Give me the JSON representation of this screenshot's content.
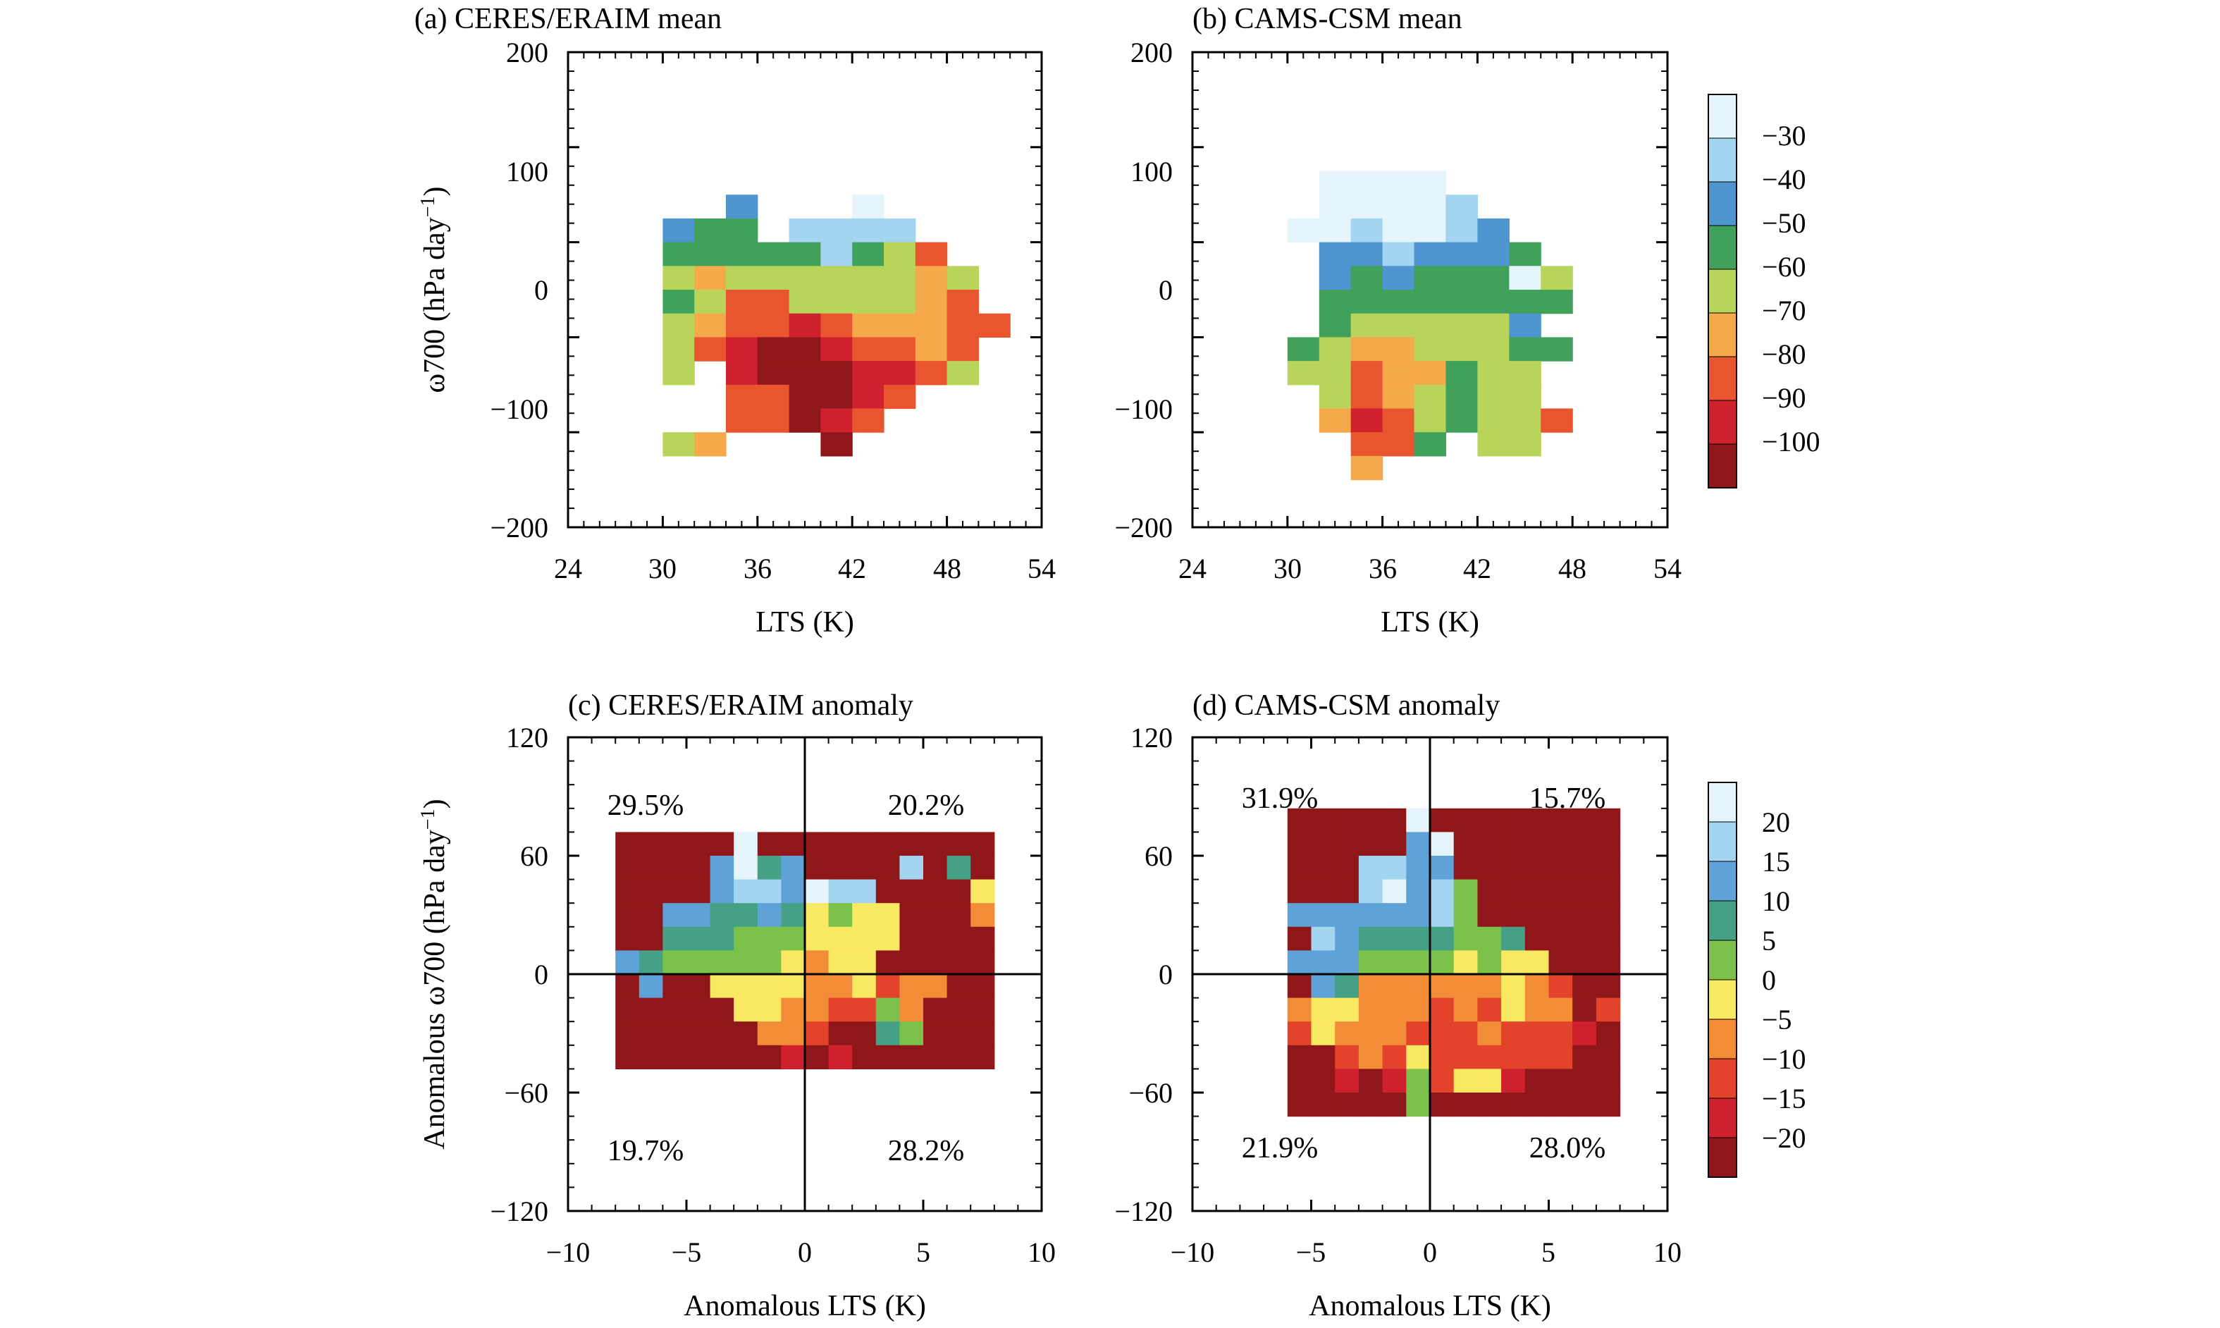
{
  "figure_type": "heatmap",
  "colorbars": {
    "mean": {
      "colors": [
        "#e6f4fb",
        "#a3d4f0",
        "#4f95d0",
        "#41a15a",
        "#b8d45a",
        "#f6a94a",
        "#e8552f",
        "#cf202d",
        "#901719"
      ],
      "labels": [
        "−30",
        "−40",
        "−50",
        "−60",
        "−70",
        "−80",
        "−90",
        "−100"
      ]
    },
    "anomaly": {
      "colors": [
        "#e6f4fb",
        "#a3d4f0",
        "#5fa2d8",
        "#45a086",
        "#7cc24a",
        "#f9e861",
        "#f38c37",
        "#e3432a",
        "#cf202d",
        "#901719"
      ],
      "labels": [
        "20",
        "15",
        "10",
        "5",
        "0",
        "−5",
        "−10",
        "−15",
        "−20"
      ]
    }
  },
  "chart_data": [
    {
      "type": "heatmap",
      "title": "(a) CERES/ERAIM mean",
      "xlabel": "LTS (K)",
      "ylabel": "ω700 (hPa day",
      "ylabel_sup": "−1",
      "ylabel_close": ")",
      "xlim": [
        24,
        54
      ],
      "ylim": [
        -200,
        200
      ],
      "xticks": [
        "24",
        "30",
        "36",
        "42",
        "48",
        "54"
      ],
      "yticks": [
        "200",
        "100",
        "0",
        "−100",
        "−200"
      ],
      "x_bin": 2,
      "y_bin": 20,
      "x_start": 30,
      "y_start": 80,
      "rows": [
        [
          9,
          9,
          2,
          9,
          9,
          9,
          0,
          9,
          9,
          9,
          9,
          9
        ],
        [
          2,
          3,
          3,
          9,
          1,
          1,
          1,
          1,
          9,
          9,
          9,
          9
        ],
        [
          3,
          3,
          3,
          3,
          3,
          1,
          3,
          4,
          6,
          9,
          9,
          9
        ],
        [
          4,
          5,
          4,
          4,
          4,
          4,
          4,
          4,
          5,
          4,
          9,
          9
        ],
        [
          3,
          4,
          6,
          6,
          4,
          4,
          4,
          4,
          5,
          6,
          9,
          9
        ],
        [
          4,
          5,
          6,
          6,
          7,
          6,
          5,
          5,
          5,
          6,
          6,
          9
        ],
        [
          4,
          6,
          7,
          8,
          8,
          7,
          6,
          6,
          5,
          6,
          9,
          9
        ],
        [
          4,
          9,
          7,
          8,
          8,
          8,
          7,
          7,
          6,
          4,
          9,
          9
        ],
        [
          9,
          9,
          6,
          6,
          8,
          8,
          7,
          6,
          9,
          9,
          9,
          9
        ],
        [
          9,
          9,
          6,
          6,
          8,
          7,
          6,
          9,
          9,
          9,
          9,
          9
        ],
        [
          4,
          5,
          9,
          9,
          9,
          8,
          9,
          9,
          9,
          9,
          9,
          9
        ]
      ]
    },
    {
      "type": "heatmap",
      "title": "(b) CAMS-CSM mean",
      "xlabel": "LTS (K)",
      "ylabel": "",
      "xlim": [
        24,
        54
      ],
      "ylim": [
        -200,
        200
      ],
      "xticks": [
        "24",
        "30",
        "36",
        "42",
        "48",
        "54"
      ],
      "yticks": [
        "200",
        "100",
        "0",
        "−100",
        "−200"
      ],
      "x_bin": 2,
      "y_bin": 20,
      "x_start": 30,
      "y_start": 100,
      "rows": [
        [
          9,
          0,
          0,
          0,
          0,
          9,
          9,
          9,
          9,
          9
        ],
        [
          9,
          0,
          0,
          0,
          0,
          1,
          9,
          9,
          9,
          9
        ],
        [
          0,
          0,
          1,
          0,
          0,
          1,
          2,
          9,
          9,
          9
        ],
        [
          9,
          2,
          2,
          1,
          2,
          2,
          2,
          3,
          9,
          9
        ],
        [
          9,
          2,
          3,
          2,
          3,
          3,
          3,
          0,
          4,
          9
        ],
        [
          9,
          3,
          3,
          3,
          3,
          3,
          3,
          3,
          3,
          9
        ],
        [
          9,
          3,
          4,
          4,
          4,
          4,
          4,
          2,
          9,
          9
        ],
        [
          3,
          4,
          5,
          5,
          4,
          4,
          4,
          3,
          3,
          9
        ],
        [
          4,
          4,
          6,
          5,
          5,
          3,
          4,
          4,
          9,
          9
        ],
        [
          9,
          4,
          6,
          5,
          4,
          3,
          4,
          4,
          9,
          9
        ],
        [
          9,
          5,
          7,
          6,
          4,
          3,
          4,
          4,
          6,
          9
        ],
        [
          9,
          9,
          6,
          6,
          3,
          9,
          4,
          4,
          9,
          9
        ],
        [
          9,
          9,
          5,
          9,
          9,
          9,
          9,
          9,
          9,
          9
        ]
      ]
    },
    {
      "type": "heatmap",
      "title": "(c) CERES/ERAIM anomaly",
      "xlabel": "Anomalous LTS (K)",
      "ylabel": "Anomalous ω700 (hPa day",
      "ylabel_sup": "−1",
      "ylabel_close": ")",
      "xlim": [
        -10,
        10
      ],
      "ylim": [
        -120,
        120
      ],
      "xticks": [
        "−10",
        "−5",
        "0",
        "5",
        "10"
      ],
      "yticks": [
        "120",
        "60",
        "0",
        "−60",
        "−120"
      ],
      "x_bin": 1,
      "y_bin": 12,
      "x_start": -8,
      "y_start": 72,
      "quadrant_percentages": {
        "top_left": "29.5%",
        "top_right": "20.2%",
        "bottom_left": "19.7%",
        "bottom_right": "28.2%"
      },
      "rows": [
        [
          9,
          9,
          9,
          9,
          9,
          0,
          9,
          9,
          9,
          9,
          9,
          9,
          9,
          9,
          9,
          9
        ],
        [
          9,
          9,
          9,
          9,
          2,
          0,
          3,
          2,
          9,
          9,
          9,
          9,
          1,
          9,
          3,
          9
        ],
        [
          9,
          9,
          9,
          9,
          2,
          1,
          1,
          2,
          0,
          1,
          1,
          9,
          9,
          9,
          9,
          5
        ],
        [
          9,
          9,
          2,
          2,
          3,
          3,
          2,
          3,
          5,
          4,
          5,
          5,
          9,
          9,
          9,
          6
        ],
        [
          9,
          9,
          3,
          3,
          3,
          4,
          4,
          4,
          5,
          5,
          5,
          5,
          9,
          9,
          9,
          9
        ],
        [
          2,
          3,
          4,
          4,
          4,
          4,
          4,
          5,
          6,
          5,
          5,
          9,
          9,
          9,
          9,
          9
        ],
        [
          9,
          2,
          9,
          9,
          5,
          5,
          5,
          5,
          6,
          6,
          5,
          7,
          6,
          6,
          9,
          9
        ],
        [
          9,
          9,
          9,
          9,
          9,
          5,
          5,
          6,
          6,
          7,
          7,
          4,
          6,
          9,
          9,
          9
        ],
        [
          9,
          9,
          9,
          9,
          9,
          9,
          6,
          6,
          7,
          9,
          9,
          3,
          4,
          9,
          9,
          9
        ],
        [
          9,
          9,
          9,
          9,
          9,
          9,
          9,
          8,
          9,
          8,
          9,
          9,
          9,
          9,
          9,
          9
        ]
      ]
    },
    {
      "type": "heatmap",
      "title": "(d) CAMS-CSM anomaly",
      "xlabel": "Anomalous LTS (K)",
      "ylabel": "",
      "xlim": [
        -10,
        10
      ],
      "ylim": [
        -120,
        120
      ],
      "xticks": [
        "−10",
        "−5",
        "0",
        "5",
        "10"
      ],
      "yticks": [
        "120",
        "60",
        "0",
        "−60",
        "−120"
      ],
      "x_bin": 1,
      "y_bin": 12,
      "x_start": -6,
      "y_start": 84,
      "quadrant_percentages": {
        "top_left": "31.9%",
        "top_right": "15.7%",
        "bottom_left": "21.9%",
        "bottom_right": "28.0%"
      },
      "rows": [
        [
          9,
          9,
          9,
          9,
          9,
          0,
          9,
          9,
          9,
          9,
          9,
          9,
          9,
          9
        ],
        [
          9,
          9,
          9,
          9,
          9,
          2,
          0,
          9,
          9,
          9,
          9,
          9,
          9,
          9
        ],
        [
          9,
          9,
          9,
          1,
          1,
          2,
          2,
          9,
          9,
          9,
          9,
          9,
          9,
          9
        ],
        [
          9,
          9,
          9,
          1,
          0,
          2,
          1,
          4,
          9,
          9,
          9,
          9,
          9,
          9
        ],
        [
          2,
          2,
          2,
          2,
          2,
          2,
          1,
          4,
          9,
          9,
          9,
          9,
          9,
          9
        ],
        [
          9,
          1,
          2,
          3,
          3,
          3,
          3,
          4,
          4,
          3,
          9,
          9,
          9,
          9
        ],
        [
          2,
          2,
          2,
          4,
          4,
          4,
          4,
          5,
          4,
          5,
          5,
          9,
          9,
          9
        ],
        [
          9,
          2,
          3,
          6,
          6,
          6,
          6,
          6,
          6,
          5,
          6,
          7,
          9,
          9
        ],
        [
          6,
          5,
          5,
          6,
          6,
          6,
          7,
          6,
          7,
          5,
          6,
          6,
          9,
          7
        ],
        [
          7,
          5,
          6,
          6,
          6,
          7,
          7,
          7,
          6,
          7,
          7,
          7,
          8,
          9
        ],
        [
          9,
          9,
          7,
          6,
          7,
          5,
          7,
          7,
          7,
          7,
          7,
          7,
          9,
          9
        ],
        [
          9,
          9,
          8,
          9,
          8,
          4,
          7,
          5,
          5,
          8,
          9,
          9,
          9,
          9
        ],
        [
          9,
          9,
          9,
          9,
          9,
          4,
          9,
          9,
          9,
          9,
          9,
          9,
          9,
          9
        ]
      ]
    }
  ]
}
